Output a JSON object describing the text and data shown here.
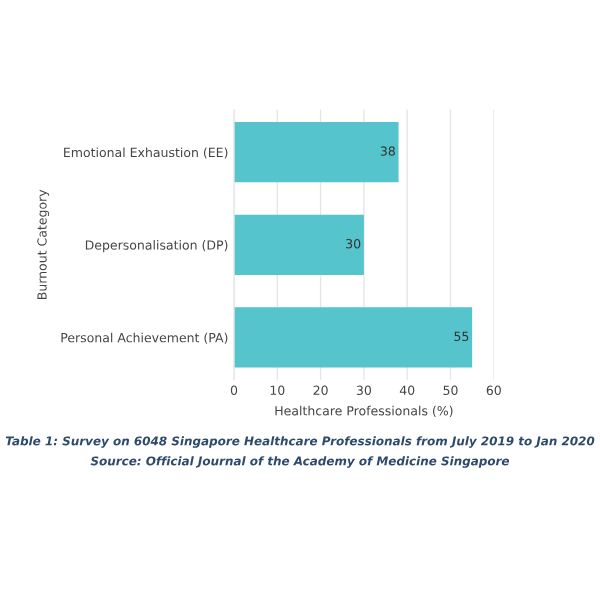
{
  "chart_data": {
    "type": "bar",
    "orientation": "horizontal",
    "categories": [
      "Emotional Exhaustion (EE)",
      "Depersonalisation (DP)",
      "Personal Achievement (PA)"
    ],
    "values": [
      38,
      30,
      55
    ],
    "color": "#56c4cc",
    "xlim": [
      0,
      60
    ],
    "xticks": [
      0,
      10,
      20,
      30,
      40,
      50,
      60
    ],
    "xlabel": "Healthcare Professionals (%)",
    "ylabel": "Burnout Category",
    "grid": "x",
    "data_labels": true,
    "annotations": [
      "Table 1: Survey on 6048 Singapore Healthcare Professionals from July 2019 to Jan 2020",
      "Source: Official Journal of the Academy of Medicine Singapore"
    ]
  }
}
